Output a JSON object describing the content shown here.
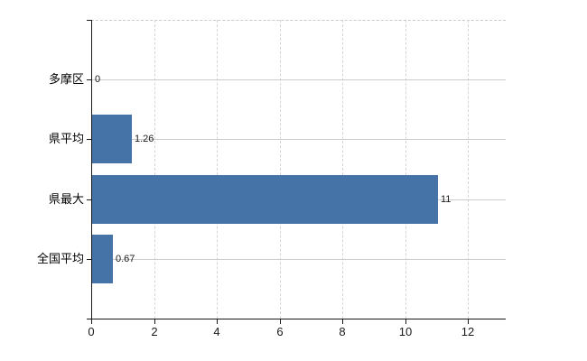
{
  "chart_data": {
    "type": "bar",
    "orientation": "horizontal",
    "title": "",
    "xlabel": "",
    "ylabel": "",
    "categories": [
      "多摩区",
      "県平均",
      "県最大",
      "全国平均"
    ],
    "values": [
      0,
      1.26,
      11,
      0.67
    ],
    "value_labels": [
      "0",
      "1.26",
      "11",
      "0.67"
    ],
    "xticks": [
      0,
      2,
      4,
      6,
      8,
      10,
      12
    ],
    "xtick_labels": [
      "0",
      "2",
      "4",
      "6",
      "8",
      "10",
      "12"
    ],
    "xlim": [
      0,
      13.2
    ],
    "grid": true,
    "legend": "none",
    "colors": {
      "bar": "#4572A7",
      "axis": "#1a1a1a",
      "category_gridline": "#c9cec9",
      "value_gridline": "#d5d5d5",
      "plot_top_border": "#c9c9c9",
      "text": "#000000",
      "background": "#ffffff"
    }
  }
}
